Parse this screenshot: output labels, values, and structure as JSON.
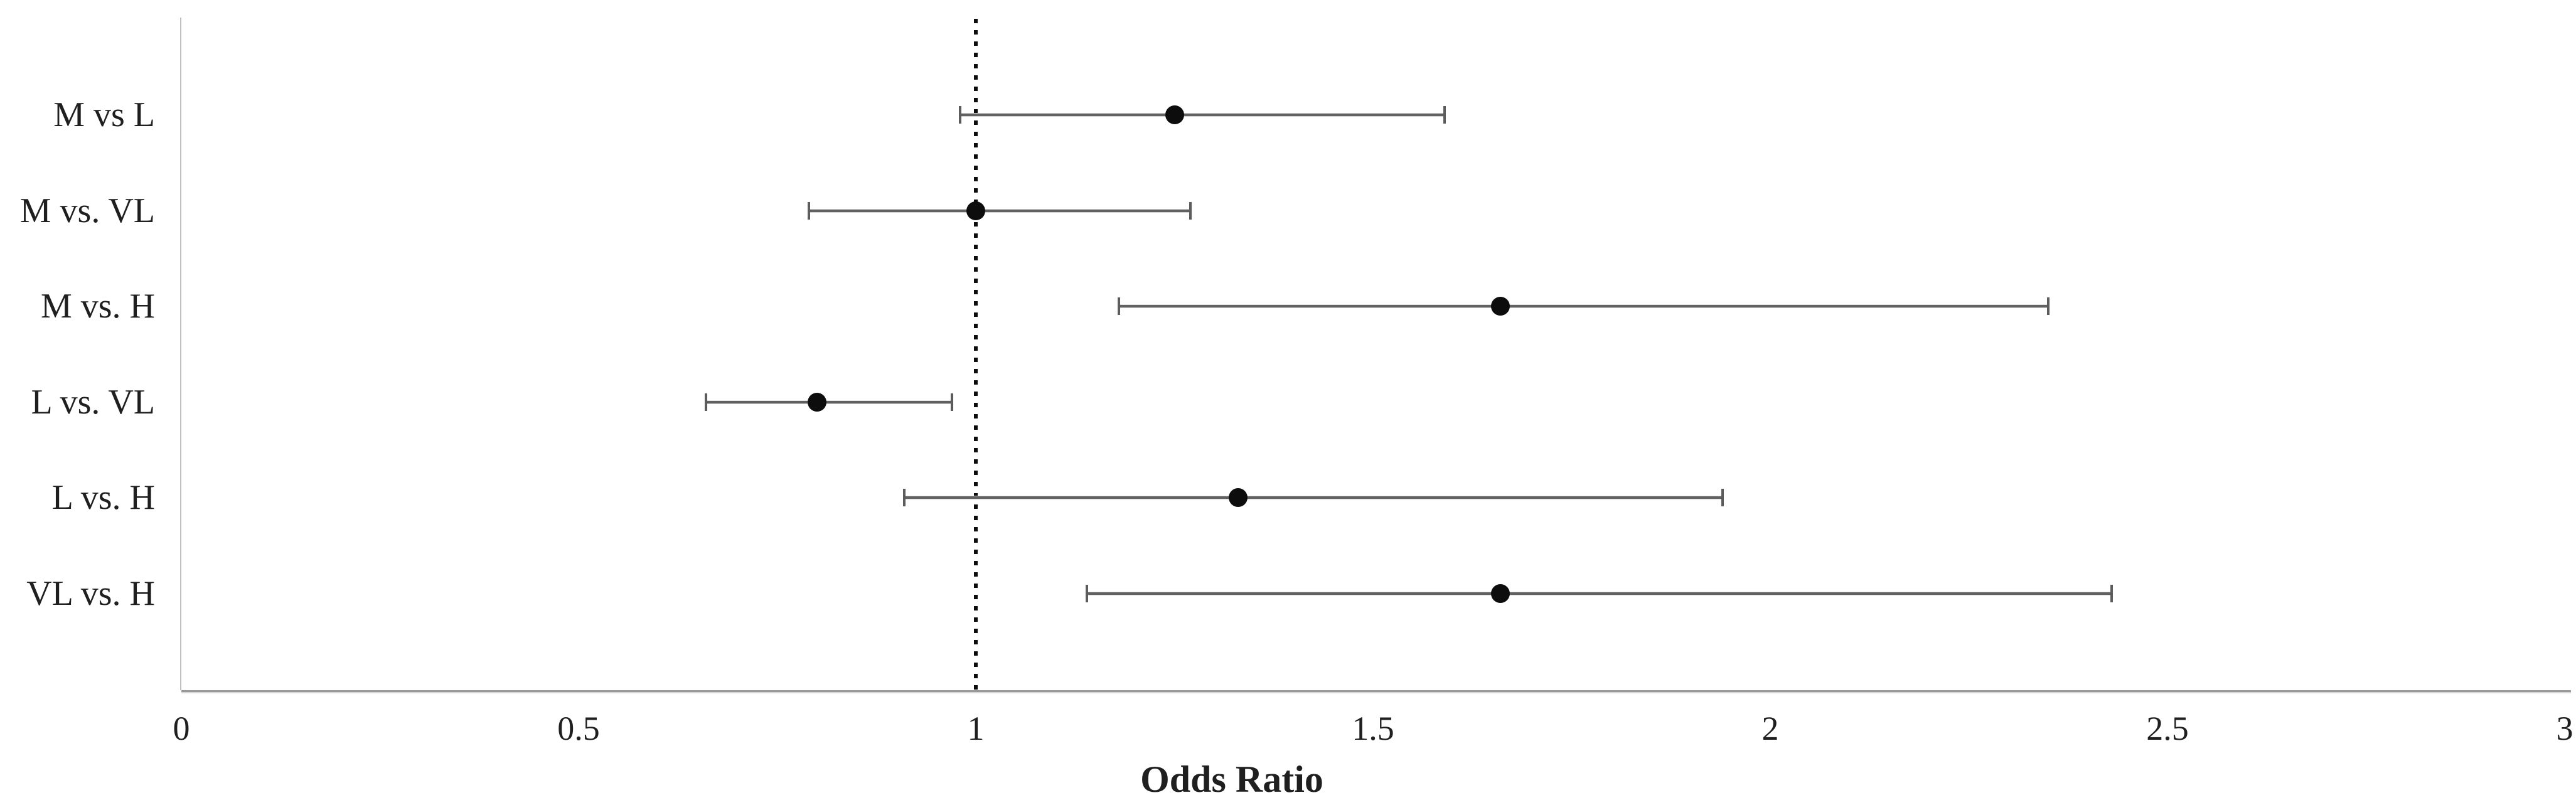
{
  "figure": {
    "background": "#ffffff"
  },
  "chart_data": {
    "type": "scatter",
    "variant": "forest-plot",
    "title": "",
    "xlabel": "Odds Ratio",
    "ylabel": "",
    "xlim": [
      0,
      3
    ],
    "grid": false,
    "legend": "none",
    "reference_line": {
      "value": 1,
      "style": "dotted",
      "orientation": "vertical"
    },
    "xticks": [
      {
        "value": 0,
        "label": "0"
      },
      {
        "value": 0.5,
        "label": "0.5"
      },
      {
        "value": 1,
        "label": "1"
      },
      {
        "value": 1.5,
        "label": "1.5"
      },
      {
        "value": 2,
        "label": "2"
      },
      {
        "value": 2.5,
        "label": "2.5"
      },
      {
        "value": 3,
        "label": "3"
      }
    ],
    "rows": [
      {
        "label": "M vs L",
        "or": 1.25,
        "ci_low": 0.98,
        "ci_high": 1.59
      },
      {
        "label": "M vs. VL",
        "or": 1.0,
        "ci_low": 0.79,
        "ci_high": 1.27
      },
      {
        "label": "M vs. H",
        "or": 1.66,
        "ci_low": 1.18,
        "ci_high": 2.35
      },
      {
        "label": "L vs. VL",
        "or": 0.8,
        "ci_low": 0.66,
        "ci_high": 0.97
      },
      {
        "label": "L vs. H",
        "or": 1.33,
        "ci_low": 0.91,
        "ci_high": 1.94
      },
      {
        "label": "VL vs. H",
        "or": 1.66,
        "ci_low": 1.14,
        "ci_high": 2.43
      }
    ],
    "colors": {
      "marker": "#0d0d0d",
      "error_bar": "#616161",
      "axis_line": "#c0c0c0",
      "reference_line": "#0d0d0d",
      "text": "#1f1f1f"
    }
  }
}
